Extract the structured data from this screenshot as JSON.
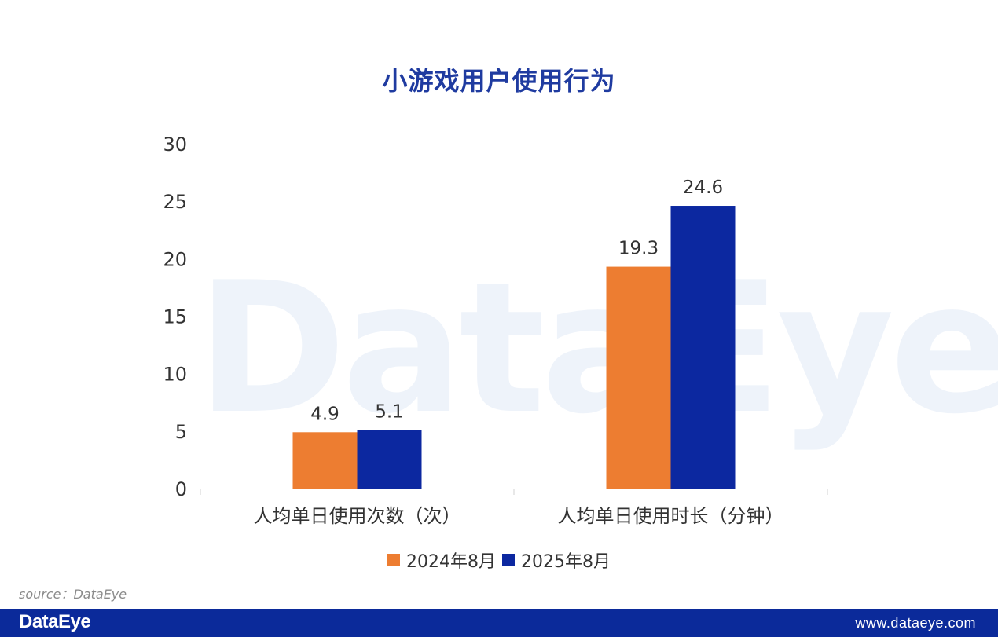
{
  "watermark": "DataEye",
  "chart_data": {
    "type": "bar",
    "title": "小游戏用户使用行为",
    "categories": [
      "人均单日使用次数（次）",
      "人均单日使用时长（分钟）"
    ],
    "series": [
      {
        "name": "2024年8月",
        "values": [
          4.9,
          19.3
        ],
        "labels": [
          "4.9",
          "19.3"
        ],
        "color": "#ed7d31"
      },
      {
        "name": "2025年8月",
        "values": [
          5.1,
          24.6
        ],
        "labels": [
          "5.1",
          "24.6"
        ],
        "color": "#0c28a0"
      }
    ],
    "ylim": [
      0,
      30
    ],
    "yticks": [
      "0",
      "5",
      "10",
      "15",
      "20",
      "25",
      "30"
    ],
    "grid": false,
    "legend": "bottom"
  },
  "source": "source：DataEye",
  "footer": {
    "logo": "DataEye",
    "url": "www.dataeye.com",
    "color": "#0b2a9a"
  }
}
